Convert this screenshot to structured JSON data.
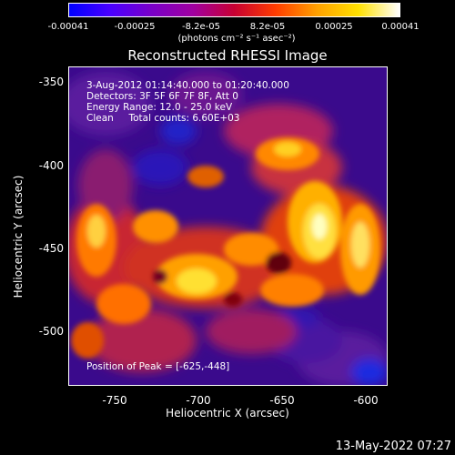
{
  "colorbar": {
    "ticks": [
      "-0.00041",
      "-0.00025",
      "-8.2e-05",
      "8.2e-05",
      "0.00025",
      "0.00041"
    ],
    "unit_label": "(photons cm⁻² s⁻¹ asec⁻²)",
    "gradient_colors": [
      "#0000ff",
      "#4a00ff",
      "#7a00c8",
      "#a000a0",
      "#c80032",
      "#ff3c00",
      "#ffa000",
      "#ffe000",
      "#ffffff"
    ]
  },
  "title": "Reconstructed RHESSI Image",
  "annotations": {
    "time_range": "3-Aug-2012 01:14:40.000 to 01:20:40.000",
    "detectors": "Detectors: 3F 5F 6F 7F 8F, Att 0",
    "energy_range": "Energy Range: 12.0 - 25.0 keV",
    "clean_counts": "Clean     Total counts: 6.60E+03",
    "peak_position": "Position of Peak = [-625,-448]"
  },
  "axes": {
    "x_label": "Heliocentric X (arcsec)",
    "y_label": "Heliocentric Y (arcsec)",
    "x_ticks": [
      "-750",
      "-700",
      "-650",
      "-600"
    ],
    "y_ticks": [
      "-350",
      "-400",
      "-450",
      "-500"
    ]
  },
  "timestamp": "13-May-2022 07:27"
}
